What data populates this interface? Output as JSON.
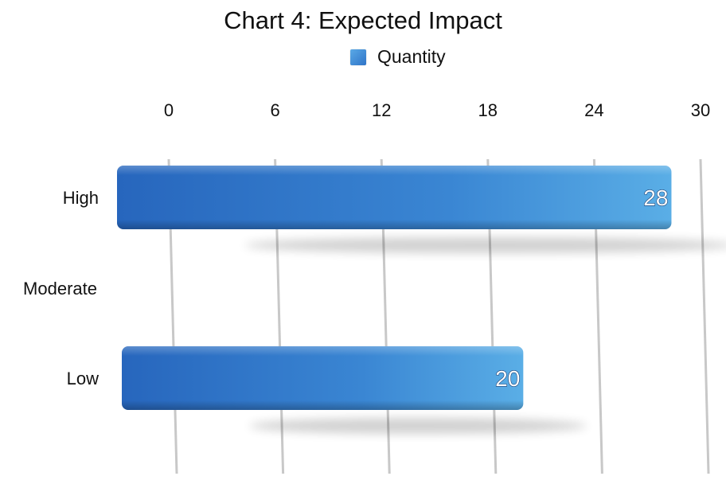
{
  "chart_data": {
    "type": "bar",
    "orientation": "horizontal",
    "title": "Chart 4: Expected Impact",
    "categories": [
      "High",
      "Moderate",
      "Low"
    ],
    "series": [
      {
        "name": "Quantity",
        "values": [
          28,
          null,
          20
        ],
        "data_labels": [
          "28",
          "",
          "20"
        ]
      }
    ],
    "xlim": [
      0,
      30
    ],
    "xticks": [
      "0",
      "6",
      "12",
      "18",
      "24",
      "30"
    ],
    "xtick_values": [
      0,
      6,
      12,
      18,
      24,
      30
    ],
    "tick_position": "top",
    "grid": true,
    "legend_position": "top",
    "bar_color": "#3b82d0"
  }
}
